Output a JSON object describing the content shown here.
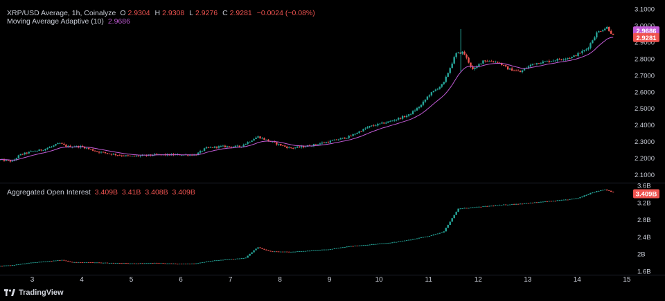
{
  "header": {
    "symbol": "XRP/USD Average, 1h, Coinalyze",
    "ohlc": [
      {
        "k": "O",
        "v": "2.9304"
      },
      {
        "k": "H",
        "v": "2.9308"
      },
      {
        "k": "L",
        "v": "2.9276"
      },
      {
        "k": "C",
        "v": "2.9281"
      }
    ],
    "change": "−0.0024 (−0.08%)",
    "ma_label": "Moving Average Adaptive (10)",
    "ma_value": "2.9686",
    "oi_label": "Aggregated Open Interest",
    "oi_values": [
      "3.409B",
      "3.41B",
      "3.408B",
      "3.409B"
    ]
  },
  "branding": "TradingView",
  "colors": {
    "up": "#26a69a",
    "down": "#ef5350",
    "ma_line": "#c25bd6",
    "ma_badge": "#c25bd6",
    "price_badge": "#ef5350",
    "background": "#000000"
  },
  "chart_data": [
    {
      "type": "candlestick",
      "title": "XRP/USD Average, 1h, Coinalyze",
      "x_label_ticks": [
        "3",
        "4",
        "5",
        "6",
        "7",
        "8",
        "9",
        "10",
        "11",
        "12",
        "13",
        "14",
        "15"
      ],
      "xlim": [
        2.35,
        15.1
      ],
      "y_ticks": [
        "2.1000",
        "2.2000",
        "2.3000",
        "2.4000",
        "2.5000",
        "2.6000",
        "2.7000",
        "2.8000",
        "2.9000",
        "3.0000",
        "3.1000"
      ],
      "ylim": [
        2.06,
        3.13
      ],
      "last_close": "2.9281",
      "ma_last": "2.9686",
      "series_anchor": [
        [
          2.35,
          2.19
        ],
        [
          2.6,
          2.18
        ],
        [
          2.75,
          2.22
        ],
        [
          3.0,
          2.24
        ],
        [
          3.2,
          2.25
        ],
        [
          3.4,
          2.27
        ],
        [
          3.55,
          2.29
        ],
        [
          3.7,
          2.27
        ],
        [
          4.0,
          2.27
        ],
        [
          4.3,
          2.24
        ],
        [
          4.7,
          2.22
        ],
        [
          5.0,
          2.21
        ],
        [
          5.5,
          2.22
        ],
        [
          6.0,
          2.22
        ],
        [
          6.3,
          2.22
        ],
        [
          6.5,
          2.26
        ],
        [
          6.8,
          2.27
        ],
        [
          7.2,
          2.27
        ],
        [
          7.55,
          2.33
        ],
        [
          7.8,
          2.3
        ],
        [
          8.2,
          2.26
        ],
        [
          8.5,
          2.27
        ],
        [
          9.0,
          2.3
        ],
        [
          9.4,
          2.33
        ],
        [
          9.8,
          2.39
        ],
        [
          10.2,
          2.42
        ],
        [
          10.6,
          2.46
        ],
        [
          10.85,
          2.52
        ],
        [
          11.0,
          2.58
        ],
        [
          11.3,
          2.65
        ],
        [
          11.55,
          2.83
        ],
        [
          11.7,
          2.84
        ],
        [
          11.9,
          2.73
        ],
        [
          12.1,
          2.79
        ],
        [
          12.4,
          2.78
        ],
        [
          12.6,
          2.74
        ],
        [
          12.85,
          2.72
        ],
        [
          13.1,
          2.77
        ],
        [
          13.5,
          2.79
        ],
        [
          13.9,
          2.81
        ],
        [
          14.2,
          2.86
        ],
        [
          14.4,
          2.96
        ],
        [
          14.6,
          2.99
        ],
        [
          14.75,
          2.93
        ]
      ]
    },
    {
      "type": "candlestick",
      "title": "Aggregated Open Interest",
      "y_ticks": [
        "1.6B",
        "2B",
        "2.4B",
        "2.8B",
        "3.2B",
        "3.6B"
      ],
      "ylim": [
        1.55,
        3.62
      ],
      "last_value": "3.409B",
      "series_anchor": [
        [
          2.35,
          1.72
        ],
        [
          2.6,
          1.74
        ],
        [
          3.0,
          1.8
        ],
        [
          3.4,
          1.84
        ],
        [
          3.6,
          1.86
        ],
        [
          3.8,
          1.81
        ],
        [
          4.3,
          1.8
        ],
        [
          5.0,
          1.78
        ],
        [
          5.5,
          1.79
        ],
        [
          6.0,
          1.77
        ],
        [
          6.3,
          1.78
        ],
        [
          6.6,
          1.84
        ],
        [
          7.0,
          1.88
        ],
        [
          7.3,
          1.91
        ],
        [
          7.55,
          2.16
        ],
        [
          7.8,
          2.06
        ],
        [
          8.2,
          2.05
        ],
        [
          8.6,
          2.08
        ],
        [
          9.0,
          2.11
        ],
        [
          9.4,
          2.18
        ],
        [
          9.8,
          2.22
        ],
        [
          10.2,
          2.26
        ],
        [
          10.6,
          2.33
        ],
        [
          11.0,
          2.42
        ],
        [
          11.3,
          2.52
        ],
        [
          11.6,
          3.06
        ],
        [
          11.8,
          3.08
        ],
        [
          12.1,
          3.11
        ],
        [
          12.5,
          3.15
        ],
        [
          12.9,
          3.18
        ],
        [
          13.3,
          3.22
        ],
        [
          13.7,
          3.26
        ],
        [
          14.0,
          3.3
        ],
        [
          14.3,
          3.44
        ],
        [
          14.55,
          3.51
        ],
        [
          14.75,
          3.44
        ]
      ]
    }
  ]
}
